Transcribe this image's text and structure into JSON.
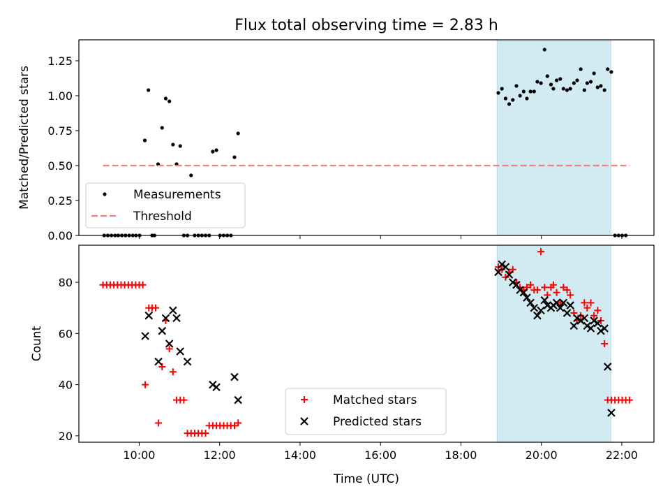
{
  "figure": {
    "title": "Flux total observing time = 2.83 h",
    "xlabel": "Time (UTC)"
  },
  "colors": {
    "shade": "#add8e6",
    "threshold": "#f08080",
    "matched": "#ff0000",
    "predicted": "#000000",
    "measure": "#000000"
  },
  "chart_data": [
    {
      "type": "scatter",
      "ylabel": "Matched/Predicted stars",
      "xlim": [
        8.5,
        22.8
      ],
      "ylim": [
        0,
        1.4
      ],
      "yticks": [
        0,
        0.25,
        0.5,
        0.75,
        1.0,
        1.25
      ],
      "ytick_labels": [
        "0.00",
        "0.25",
        "0.50",
        "0.75",
        "1.00",
        "1.25"
      ],
      "grid": false,
      "legend_position": "lower-left",
      "shaded_interval": [
        18.9,
        21.73
      ],
      "series": [
        {
          "name": "Measurements",
          "kind": "points",
          "color": "#000000",
          "x": [
            9.13,
            9.22,
            9.31,
            9.4,
            9.48,
            9.57,
            9.66,
            9.75,
            9.84,
            9.92,
            10.01,
            10.14,
            10.23,
            10.32,
            10.38,
            10.47,
            10.57,
            10.66,
            10.75,
            10.84,
            10.93,
            11.02,
            11.11,
            11.2,
            11.29,
            11.38,
            11.47,
            11.56,
            11.65,
            11.74,
            11.83,
            11.92,
            12.01,
            12.1,
            12.19,
            12.28,
            12.37,
            12.46,
            18.93,
            19.02,
            19.11,
            19.2,
            19.29,
            19.38,
            19.47,
            19.56,
            19.64,
            19.73,
            19.82,
            19.9,
            19.99,
            20.08,
            20.15,
            20.24,
            20.3,
            20.38,
            20.47,
            20.55,
            20.64,
            20.72,
            20.81,
            20.89,
            20.98,
            21.07,
            21.14,
            21.23,
            21.31,
            21.4,
            21.48,
            21.57,
            21.65,
            21.74,
            21.83,
            21.92,
            22.01,
            22.1
          ],
          "y": [
            0,
            0,
            0,
            0,
            0,
            0,
            0,
            0,
            0,
            0,
            0,
            0.68,
            1.04,
            0,
            0,
            0.51,
            0.77,
            0.98,
            0.96,
            0.65,
            0.51,
            0.64,
            0,
            0,
            0.43,
            0,
            0,
            0,
            0,
            0,
            0.6,
            0.61,
            0,
            0,
            0,
            0,
            0.56,
            0.73,
            1.02,
            1.05,
            0.98,
            0.94,
            0.97,
            1.07,
            1.0,
            1.03,
            0.98,
            1.03,
            1.03,
            1.1,
            1.09,
            1.33,
            1.14,
            1.08,
            1.05,
            1.11,
            1.12,
            1.05,
            1.04,
            1.05,
            1.09,
            1.11,
            1.19,
            1.04,
            1.09,
            1.1,
            1.16,
            1.06,
            1.07,
            1.04,
            1.19,
            1.17,
            0,
            0,
            0,
            0
          ]
        },
        {
          "name": "Threshold",
          "kind": "dashed-line",
          "color": "#f08080",
          "x": [
            9.1,
            22.2
          ],
          "y": [
            0.5,
            0.5
          ]
        }
      ]
    },
    {
      "type": "scatter",
      "ylabel": "Count",
      "xlim": [
        8.5,
        22.8
      ],
      "ylim": [
        17.5,
        94.5
      ],
      "yticks": [
        20,
        40,
        60,
        80
      ],
      "ytick_labels": [
        "20",
        "40",
        "60",
        "80"
      ],
      "xticks": [
        10,
        12,
        14,
        16,
        18,
        20,
        22
      ],
      "xtick_labels": [
        "10:00",
        "12:00",
        "14:00",
        "16:00",
        "18:00",
        "20:00",
        "22:00"
      ],
      "grid": false,
      "legend_position": "lower-center",
      "shaded_interval": [
        18.9,
        21.73
      ],
      "series": [
        {
          "name": "Matched stars",
          "kind": "plus",
          "color": "#ff0000",
          "x": [
            9.1,
            9.19,
            9.28,
            9.37,
            9.46,
            9.55,
            9.64,
            9.73,
            9.82,
            9.91,
            10.0,
            10.09,
            10.15,
            10.24,
            10.32,
            10.41,
            10.48,
            10.57,
            10.66,
            10.75,
            10.84,
            10.93,
            11.02,
            11.11,
            11.2,
            11.29,
            11.38,
            11.47,
            11.56,
            11.65,
            11.74,
            11.83,
            11.92,
            12.01,
            12.1,
            12.19,
            12.28,
            12.37,
            12.46,
            18.93,
            19.02,
            19.11,
            19.2,
            19.29,
            19.38,
            19.47,
            19.56,
            19.64,
            19.73,
            19.82,
            19.9,
            19.99,
            20.08,
            20.15,
            20.24,
            20.3,
            20.38,
            20.47,
            20.55,
            20.64,
            20.72,
            20.81,
            20.89,
            20.98,
            21.07,
            21.14,
            21.23,
            21.31,
            21.4,
            21.48,
            21.57,
            21.65,
            21.74,
            21.83,
            21.92,
            22.01,
            22.1,
            22.19
          ],
          "y": [
            79,
            79,
            79,
            79,
            79,
            79,
            79,
            79,
            79,
            79,
            79,
            79,
            40,
            70,
            70,
            70,
            25,
            47,
            65,
            54,
            45,
            34,
            34,
            34,
            21,
            21,
            21,
            21,
            21,
            21,
            24,
            24,
            24,
            24,
            24,
            24,
            24,
            24,
            25,
            86,
            85,
            82,
            84,
            85,
            80,
            78,
            77,
            78,
            79,
            77,
            77,
            92,
            78,
            75,
            78,
            79,
            76,
            72,
            78,
            77,
            75,
            68,
            65,
            67,
            72,
            70,
            72,
            67,
            69,
            65,
            56,
            34,
            34,
            34,
            34,
            34,
            34,
            34
          ]
        },
        {
          "name": "Predicted stars",
          "kind": "x",
          "color": "#000000",
          "x": [
            10.15,
            10.24,
            10.48,
            10.57,
            10.66,
            10.75,
            10.84,
            10.93,
            11.02,
            11.2,
            11.83,
            11.92,
            12.37,
            12.46,
            18.93,
            19.02,
            19.11,
            19.2,
            19.29,
            19.38,
            19.47,
            19.56,
            19.64,
            19.73,
            19.82,
            19.9,
            19.99,
            20.08,
            20.15,
            20.24,
            20.3,
            20.38,
            20.47,
            20.55,
            20.64,
            20.72,
            20.81,
            20.89,
            20.98,
            21.07,
            21.14,
            21.23,
            21.31,
            21.4,
            21.48,
            21.57,
            21.65,
            21.74
          ],
          "y": [
            59,
            67,
            49,
            61,
            66,
            56,
            69,
            66,
            53,
            49,
            40,
            39,
            43,
            34,
            84,
            87,
            86,
            83,
            80,
            79,
            77,
            76,
            74,
            72,
            70,
            67,
            69,
            73,
            71,
            70,
            71,
            72,
            70,
            72,
            68,
            71,
            63,
            66,
            65,
            66,
            63,
            62,
            65,
            64,
            61,
            62,
            47,
            29
          ]
        }
      ]
    }
  ]
}
